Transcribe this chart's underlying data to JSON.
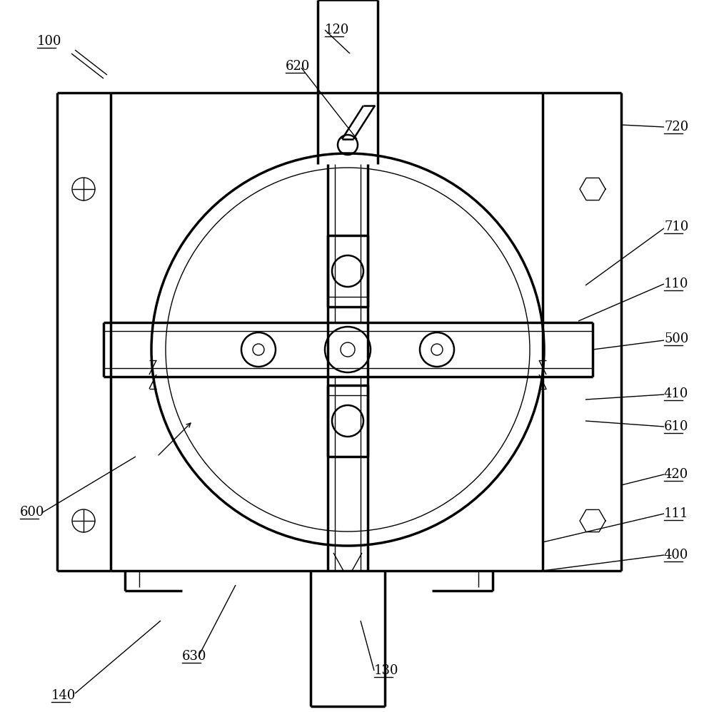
{
  "bg_color": "#ffffff",
  "line_color": "#000000",
  "fig_width": 10.0,
  "fig_height": 9.98,
  "lw_thin": 1.0,
  "lw_med": 1.8,
  "lw_thick": 2.5
}
